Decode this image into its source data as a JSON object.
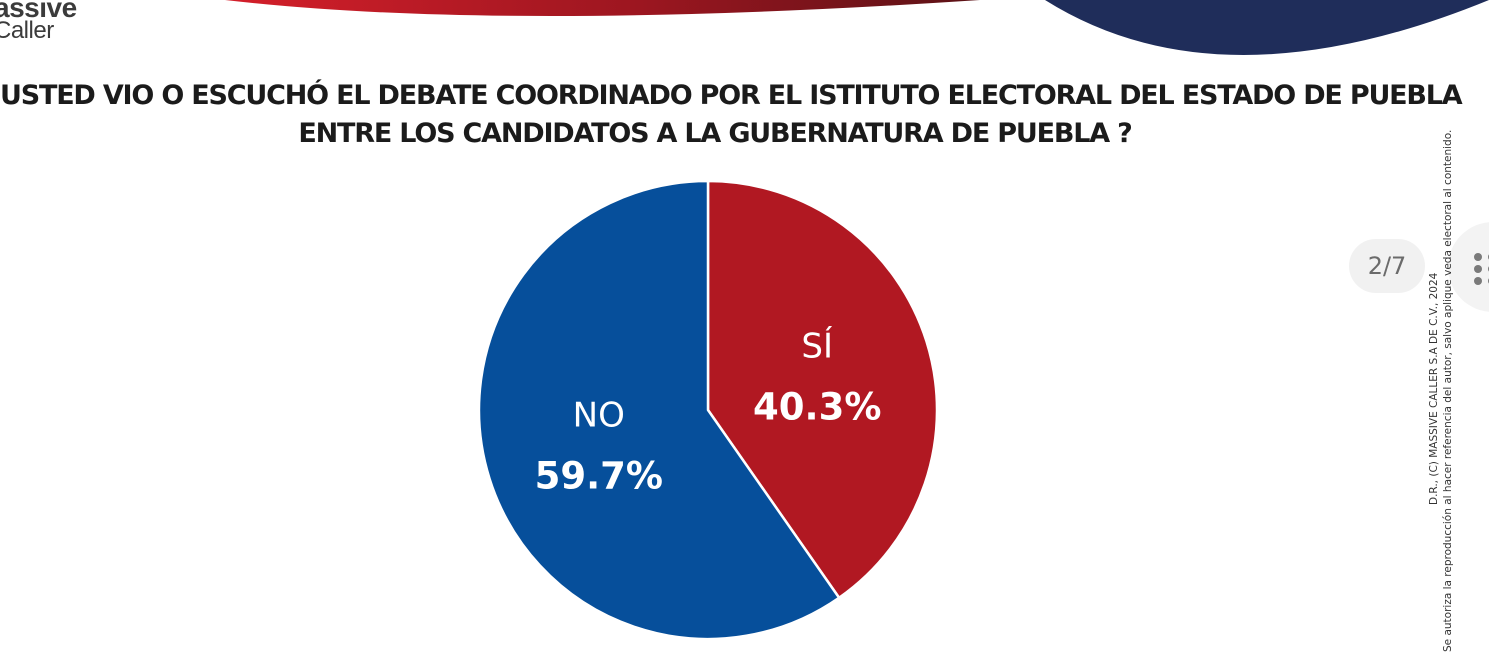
{
  "logo": {
    "line1": "assive",
    "line2": "Caller"
  },
  "title": {
    "line1": "USTED VIO O ESCUCHÓ EL DEBATE COORDINADO POR EL ISTITUTO ELECTORAL DEL ESTADO DE PUEBLA",
    "line2": "ENTRE LOS CANDIDATOS A LA GUBERNATURA DE PUEBLA ?"
  },
  "page_indicator": "2/7",
  "icons": {
    "grid": "grid-dots-icon"
  },
  "copyright": {
    "line1": "D.R., (C) MASSIVE CALLER S.A DE C.V., 2024",
    "line2": "Se autoriza la reproducción al hacer referencia del autor, salvo aplique veda electoral al contenido."
  },
  "colors": {
    "si": "#b11822",
    "no": "#064f9b",
    "decor_red": "#a8151d",
    "decor_navy": "#1f2d5a"
  },
  "chart_data": {
    "type": "pie",
    "title": "USTED VIO O ESCUCHÓ EL DEBATE COORDINADO POR EL ISTITUTO ELECTORAL DEL ESTADO DE PUEBLA ENTRE LOS CANDIDATOS A LA GUBERNATURA DE PUEBLA ?",
    "slices": [
      {
        "label": "SÍ",
        "value": 40.3,
        "display": "40.3%",
        "color": "#b11822"
      },
      {
        "label": "NO",
        "value": 59.7,
        "display": "59.7%",
        "color": "#064f9b"
      }
    ],
    "start": "top, clockwise",
    "legend": "none (labels inside slices)"
  }
}
